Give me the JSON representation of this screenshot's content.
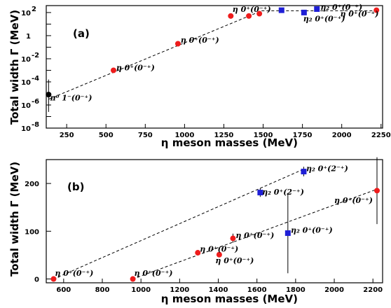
{
  "chart_data": [
    {
      "type": "scatter",
      "panel_label": "(a)",
      "xlabel": "η meson masses (MeV)",
      "ylabel": "Total width Γ (MeV)",
      "xlim": [
        120,
        2260
      ],
      "y_scale": "log",
      "ylim_exp": [
        -8,
        2.6
      ],
      "x_ticks": [
        250,
        500,
        750,
        1000,
        1250,
        1500,
        1750,
        2000,
        2250
      ],
      "y_tick_labels": [
        {
          "exp": 2,
          "text": "10",
          "sup": "2"
        },
        {
          "exp": 0,
          "text": "1",
          "sup": ""
        },
        {
          "exp": -2,
          "text": "10",
          "sup": "-2"
        },
        {
          "exp": -4,
          "text": "10",
          "sup": "-4"
        },
        {
          "exp": -6,
          "text": "10",
          "sup": "-6"
        },
        {
          "exp": -8,
          "text": "10",
          "sup": "-8"
        }
      ],
      "fit_line": {
        "from": [
          135,
          -5.5
        ],
        "to": [
          1490,
          2.15
        ]
      },
      "fit_line_2": {
        "from": [
          1490,
          2.15
        ],
        "to": [
          2230,
          2.15
        ]
      },
      "points": [
        {
          "x": 135,
          "y_exp": -5.1,
          "color": "#000000",
          "marker": "circle",
          "err_lo": -6.6,
          "err_hi": -3.8
        },
        {
          "x": 548,
          "y_exp": -3.0,
          "color": "#ee1c1c",
          "marker": "circle"
        },
        {
          "x": 958,
          "y_exp": -0.7,
          "color": "#ee1c1c",
          "marker": "circle"
        },
        {
          "x": 1294,
          "y_exp": 1.7,
          "color": "#ee1c1c",
          "marker": "circle"
        },
        {
          "x": 1409,
          "y_exp": 1.7,
          "color": "#ee1c1c",
          "marker": "circle"
        },
        {
          "x": 1476,
          "y_exp": 1.9,
          "color": "#ee1c1c",
          "marker": "circle"
        },
        {
          "x": 1617,
          "y_exp": 2.2,
          "color": "#1f1fd6",
          "marker": "square"
        },
        {
          "x": 1760,
          "y_exp": 2.0,
          "color": "#1f1fd6",
          "marker": "square"
        },
        {
          "x": 1842,
          "y_exp": 2.3,
          "color": "#1f1fd6",
          "marker": "square"
        },
        {
          "x": 2221,
          "y_exp": 2.2,
          "color": "#ee1c1c",
          "marker": "circle"
        }
      ],
      "labels": [
        {
          "text": "π⁰ 1⁻(0⁻⁺)",
          "x": 145,
          "y_exp": -5.6
        },
        {
          "text": "η 0⁺(0⁻⁺)",
          "x": 565,
          "y_exp": -3.0
        },
        {
          "text": "η 0⁺(0⁻⁺)",
          "x": 975,
          "y_exp": -0.6
        },
        {
          "text": "η 0⁺(0⁻⁺)",
          "x": 1305,
          "y_exp": 2.05
        },
        {
          "text": "η₂ 0⁺(0⁻⁺)",
          "x": 1755,
          "y_exp": 1.25
        },
        {
          "text": "η₂ 0⁺(0⁻⁺)",
          "x": 1865,
          "y_exp": 2.25
        },
        {
          "text": "η 0⁺(0⁻⁺)",
          "x": 1990,
          "y_exp": 1.65
        }
      ]
    },
    {
      "type": "scatter",
      "panel_label": "(b)",
      "xlabel": "η meson masses (MeV)",
      "ylabel": "Total width Γ (MeV)",
      "xlim": [
        510,
        2250
      ],
      "ylim": [
        -8,
        250
      ],
      "x_ticks": [
        600,
        800,
        1000,
        1200,
        1400,
        1600,
        1800,
        2000,
        2200
      ],
      "y_ticks": [
        0,
        100,
        200
      ],
      "fit_line_1": {
        "from": [
          548,
          0
        ],
        "to": [
          1842,
          230
        ]
      },
      "fit_line_2": {
        "from": [
          958,
          0
        ],
        "to": [
          2221,
          188
        ]
      },
      "points": [
        {
          "x": 548,
          "y": 0,
          "color": "#ee1c1c",
          "marker": "circle"
        },
        {
          "x": 958,
          "y": 0,
          "color": "#ee1c1c",
          "marker": "circle"
        },
        {
          "x": 1294,
          "y": 55,
          "color": "#ee1c1c",
          "marker": "circle"
        },
        {
          "x": 1405,
          "y": 51,
          "color": "#ee1c1c",
          "marker": "circle"
        },
        {
          "x": 1476,
          "y": 85,
          "color": "#ee1c1c",
          "marker": "circle",
          "err_lo": 76,
          "err_hi": 95
        },
        {
          "x": 1617,
          "y": 181,
          "color": "#1f1fd6",
          "marker": "square",
          "err_lo": 172,
          "err_hi": 190
        },
        {
          "x": 1760,
          "y": 96,
          "color": "#1f1fd6",
          "marker": "square",
          "err_lo": 12,
          "err_hi": 180
        },
        {
          "x": 1842,
          "y": 225,
          "color": "#1f1fd6",
          "marker": "square",
          "err_lo": 215,
          "err_hi": 235
        },
        {
          "x": 2221,
          "y": 185,
          "color": "#ee1c1c",
          "marker": "circle",
          "err_lo": 115,
          "err_hi": 255
        }
      ],
      "labels": [
        {
          "text": "η 0⁺(0⁻⁺)",
          "x": 555,
          "y": 7
        },
        {
          "text": "η 0⁺(0⁻⁺)",
          "x": 965,
          "y": 7
        },
        {
          "text": "η 0⁺(0⁻⁺)",
          "x": 1305,
          "y": 57
        },
        {
          "text": "η 0⁺(0⁻⁺)",
          "x": 1385,
          "y": 33
        },
        {
          "text": "η 0⁺(0⁻⁺)",
          "x": 1490,
          "y": 86
        },
        {
          "text": "η₂ 0⁺(2⁻⁺)",
          "x": 1627,
          "y": 177
        },
        {
          "text": "η₂ 0⁺(0⁻⁺)",
          "x": 1775,
          "y": 97
        },
        {
          "text": "η₂ 0⁺(2⁻⁺)",
          "x": 1855,
          "y": 226
        },
        {
          "text": "η 0⁺(0⁻⁺)",
          "x": 2000,
          "y": 159
        }
      ]
    }
  ]
}
